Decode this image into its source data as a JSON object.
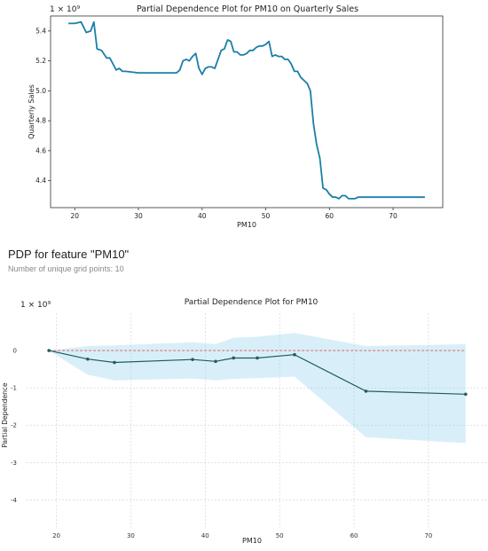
{
  "pdp_header": {
    "title": "PDP for feature \"PM10\"",
    "subtitle": "Number of unique grid points: 10"
  },
  "chart_data": [
    {
      "type": "line",
      "title": "Partial Dependence Plot for PM10 on Quarterly Sales",
      "xlabel": "PM10",
      "ylabel": "Quarterly Sales",
      "offset_label": "1 × 10⁹",
      "xlim": [
        16.2,
        77.8
      ],
      "ylim": [
        4.22,
        5.5
      ],
      "x_ticks": [
        20,
        30,
        40,
        50,
        60,
        70
      ],
      "y_ticks": [
        4.4,
        4.6,
        4.8,
        5.0,
        5.2,
        5.4
      ],
      "grid": false,
      "line_color": "#1a7fa8",
      "series": [
        {
          "x": [
            19.0,
            20.0,
            21.0,
            21.8,
            22.5,
            23.0,
            23.5,
            24.2,
            25.0,
            25.5,
            26.0,
            26.5,
            27.0,
            27.5,
            28.0,
            30.0,
            33.0,
            35.5,
            36.0,
            36.5,
            37.0,
            37.5,
            38.0,
            38.5,
            39.0,
            39.5,
            40.0,
            40.5,
            41.0,
            41.5,
            42.0,
            42.5,
            43.0,
            43.5,
            44.0,
            44.5,
            45.0,
            45.5,
            46.0,
            46.5,
            47.0,
            47.5,
            48.0,
            48.5,
            49.0,
            49.5,
            50.0,
            50.5,
            51.0,
            51.5,
            52.0,
            52.5,
            53.0,
            53.5,
            54.0,
            54.5,
            55.0,
            55.5,
            56.0,
            56.5,
            57.0,
            57.5,
            58.0,
            58.5,
            59.0,
            59.5,
            60.0,
            60.5,
            61.0,
            61.5,
            62.0,
            62.5,
            63.0,
            63.5,
            64.0,
            64.5,
            65.0,
            65.5,
            66.0,
            67.0,
            68.0,
            69.0,
            70.0,
            72.0,
            75.0
          ],
          "y": [
            5.45,
            5.45,
            5.46,
            5.39,
            5.4,
            5.46,
            5.28,
            5.27,
            5.22,
            5.22,
            5.18,
            5.14,
            5.15,
            5.13,
            5.13,
            5.12,
            5.12,
            5.12,
            5.12,
            5.14,
            5.2,
            5.21,
            5.2,
            5.23,
            5.25,
            5.15,
            5.11,
            5.15,
            5.16,
            5.16,
            5.15,
            5.21,
            5.27,
            5.28,
            5.34,
            5.33,
            5.26,
            5.26,
            5.24,
            5.24,
            5.25,
            5.27,
            5.27,
            5.29,
            5.3,
            5.3,
            5.31,
            5.33,
            5.23,
            5.24,
            5.23,
            5.23,
            5.21,
            5.21,
            5.18,
            5.13,
            5.13,
            5.09,
            5.07,
            5.05,
            5.0,
            4.78,
            4.64,
            4.55,
            4.35,
            4.34,
            4.31,
            4.29,
            4.29,
            4.28,
            4.3,
            4.3,
            4.28,
            4.28,
            4.28,
            4.29,
            4.29,
            4.29,
            4.29,
            4.29,
            4.29,
            4.29,
            4.29,
            4.29,
            4.29
          ]
        }
      ]
    },
    {
      "type": "line",
      "title": "Partial Dependence Plot for PM10",
      "xlabel": "PM10",
      "ylabel": "Partial Dependence",
      "offset_label": "1 × 10⁹",
      "xlim": [
        16.0,
        78.0
      ],
      "ylim": [
        -4.8,
        1.0
      ],
      "x_ticks": [
        20,
        30,
        40,
        50,
        60,
        70
      ],
      "y_ticks": [
        0,
        -1,
        -2,
        -3,
        -4
      ],
      "grid": true,
      "line_color": "#1f5c5c",
      "band_color": "#87ceeb",
      "reference_line_color": "#e05050",
      "series": [
        {
          "x": [
            19.0,
            24.2,
            27.8,
            38.3,
            41.4,
            43.8,
            47.0,
            52.0,
            61.6,
            75.0
          ],
          "y": [
            0.0,
            -0.23,
            -0.32,
            -0.24,
            -0.29,
            -0.2,
            -0.2,
            -0.11,
            -1.09,
            -1.17
          ],
          "upper": [
            0.0,
            0.12,
            0.14,
            0.22,
            0.17,
            0.34,
            0.37,
            0.47,
            0.12,
            0.17
          ],
          "lower": [
            0.0,
            -0.65,
            -0.8,
            -0.75,
            -0.8,
            -0.76,
            -0.74,
            -0.7,
            -2.32,
            -2.48
          ]
        }
      ]
    }
  ]
}
